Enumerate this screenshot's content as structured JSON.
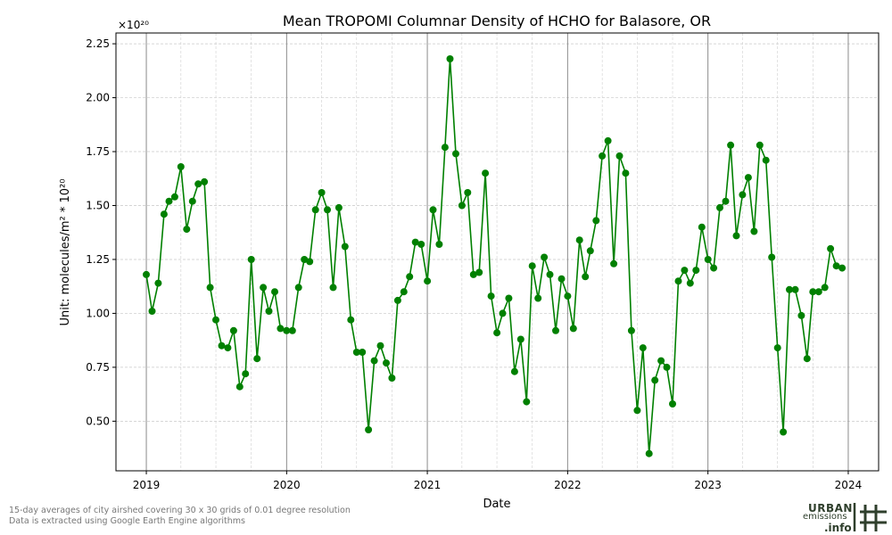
{
  "chart_data": {
    "type": "line",
    "title": "Mean TROPOMI Columnar Density of HCHO for Balasore, OR",
    "xlabel": "Date",
    "ylabel": "Unit: molecules/m² * 10²⁰",
    "y_multiplier": "×10²⁰",
    "ylim": [
      0.27,
      2.3
    ],
    "xlim": [
      "2018-10-14",
      "2024-03-20"
    ],
    "x_ticks": [
      "2019",
      "2020",
      "2021",
      "2022",
      "2023",
      "2024"
    ],
    "y_ticks": [
      "0.50",
      "0.75",
      "1.00",
      "1.25",
      "1.50",
      "1.75",
      "2.00",
      "2.25"
    ],
    "grid": true,
    "line_color": "#008000",
    "series": [
      {
        "x": [
          "2019-01-01",
          "2019-01-16",
          "2019-02-01",
          "2019-02-16",
          "2019-03-01",
          "2019-03-16",
          "2019-04-01",
          "2019-04-16",
          "2019-05-01",
          "2019-05-16",
          "2019-06-01",
          "2019-06-16",
          "2019-07-01",
          "2019-07-16",
          "2019-08-01",
          "2019-08-16",
          "2019-09-01",
          "2019-09-16",
          "2019-10-01",
          "2019-10-16",
          "2019-11-01",
          "2019-11-16",
          "2019-12-01",
          "2019-12-16",
          "2020-01-01",
          "2020-01-16",
          "2020-02-01",
          "2020-02-16",
          "2020-03-01",
          "2020-03-16",
          "2020-04-01",
          "2020-04-16",
          "2020-05-01",
          "2020-05-16",
          "2020-06-01",
          "2020-06-16",
          "2020-07-01",
          "2020-07-16",
          "2020-08-01",
          "2020-08-16",
          "2020-09-01",
          "2020-09-16",
          "2020-10-01",
          "2020-10-16",
          "2020-11-01",
          "2020-11-16",
          "2020-12-01",
          "2020-12-16",
          "2021-01-01",
          "2021-01-16",
          "2021-02-01",
          "2021-02-16",
          "2021-03-01",
          "2021-03-16",
          "2021-04-01",
          "2021-04-16",
          "2021-05-01",
          "2021-05-16",
          "2021-06-01",
          "2021-06-16",
          "2021-07-01",
          "2021-07-16",
          "2021-08-01",
          "2021-08-16",
          "2021-09-01",
          "2021-09-16",
          "2021-10-01",
          "2021-10-16",
          "2021-11-01",
          "2021-11-16",
          "2021-12-01",
          "2021-12-16",
          "2022-01-01",
          "2022-01-16",
          "2022-02-01",
          "2022-02-16",
          "2022-03-01",
          "2022-03-16",
          "2022-04-01",
          "2022-04-16",
          "2022-05-01",
          "2022-05-16",
          "2022-06-01",
          "2022-06-16",
          "2022-07-01",
          "2022-07-16",
          "2022-08-01",
          "2022-08-16",
          "2022-09-01",
          "2022-09-16",
          "2022-10-01",
          "2022-10-16",
          "2022-11-01",
          "2022-11-16",
          "2022-12-01",
          "2022-12-16",
          "2023-01-01",
          "2023-01-16",
          "2023-02-01",
          "2023-02-16",
          "2023-03-01",
          "2023-03-16",
          "2023-04-01",
          "2023-04-16",
          "2023-05-01",
          "2023-05-16",
          "2023-06-01",
          "2023-06-16",
          "2023-07-01",
          "2023-07-16",
          "2023-08-01",
          "2023-08-16",
          "2023-09-01",
          "2023-09-16",
          "2023-10-01",
          "2023-10-16",
          "2023-11-01",
          "2023-11-16",
          "2023-12-01",
          "2023-12-16"
        ],
        "y": [
          1.18,
          1.01,
          1.14,
          1.46,
          1.52,
          1.54,
          1.68,
          1.39,
          1.52,
          1.6,
          1.61,
          1.12,
          0.97,
          0.85,
          0.84,
          0.92,
          0.66,
          0.72,
          1.25,
          0.79,
          1.12,
          1.01,
          1.1,
          0.93,
          0.92,
          0.92,
          1.12,
          1.25,
          1.24,
          1.48,
          1.56,
          1.48,
          1.12,
          1.49,
          1.31,
          0.97,
          0.82,
          0.82,
          0.46,
          0.78,
          0.85,
          0.77,
          0.7,
          1.06,
          1.1,
          1.17,
          1.33,
          1.32,
          1.15,
          1.48,
          1.32,
          1.77,
          2.18,
          1.74,
          1.5,
          1.56,
          1.18,
          1.19,
          1.65,
          1.08,
          0.91,
          1.0,
          1.07,
          0.73,
          0.88,
          0.59,
          1.22,
          1.07,
          1.26,
          1.18,
          0.92,
          1.16,
          1.08,
          0.93,
          1.34,
          1.17,
          1.29,
          1.43,
          1.73,
          1.8,
          1.23,
          1.73,
          1.65,
          0.92,
          0.55,
          0.84,
          0.35,
          0.69,
          0.78,
          0.75,
          0.58,
          1.15,
          1.2,
          1.14,
          1.2,
          1.4,
          1.25,
          1.21,
          1.49,
          1.52,
          1.78,
          1.36,
          1.55,
          1.63,
          1.38,
          1.78,
          1.71,
          1.26,
          0.84,
          0.45,
          1.11,
          1.11,
          0.99,
          0.79,
          1.1,
          1.1,
          1.12,
          1.3,
          1.22,
          1.21
        ]
      }
    ]
  },
  "footer": {
    "line1": "15-day averages of city airshed covering 30 x 30 grids of 0.01 degree resolution",
    "line2": "Data is extracted using Google Earth Engine algorithms"
  },
  "logo": {
    "line1": "URBAN",
    "line2": "emissions",
    "line3": ".info",
    "color": "#2f3f2c"
  }
}
